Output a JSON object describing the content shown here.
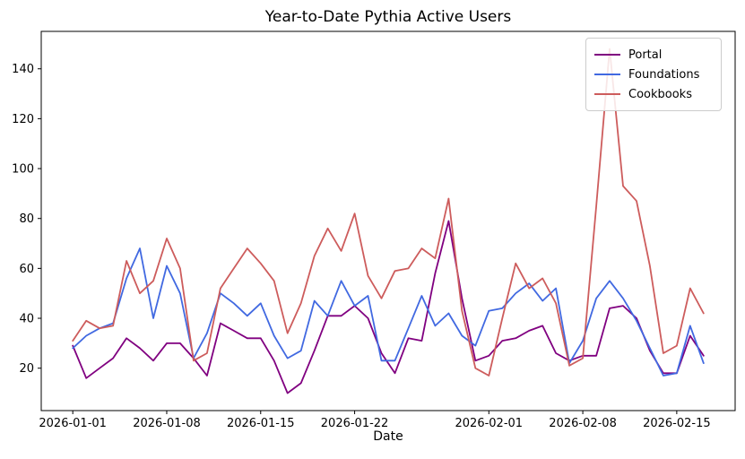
{
  "chart_data": {
    "type": "line",
    "title": "Year-to-Date Pythia Active Users",
    "xlabel": "Date",
    "ylabel": "",
    "grid": false,
    "legend_position": "upper right",
    "ylim": [
      3,
      155
    ],
    "yticks": [
      20,
      40,
      60,
      80,
      100,
      120,
      140
    ],
    "xtick_labels": [
      "2026-01-01",
      "2026-01-08",
      "2026-01-15",
      "2026-01-22",
      "2026-02-01",
      "2026-02-08",
      "2026-02-15"
    ],
    "xtick_indices": [
      0,
      7,
      14,
      21,
      31,
      38,
      45
    ],
    "x": [
      "2026-01-01",
      "2026-01-02",
      "2026-01-03",
      "2026-01-04",
      "2026-01-05",
      "2026-01-06",
      "2026-01-07",
      "2026-01-08",
      "2026-01-09",
      "2026-01-10",
      "2026-01-11",
      "2026-01-12",
      "2026-01-13",
      "2026-01-14",
      "2026-01-15",
      "2026-01-16",
      "2026-01-17",
      "2026-01-18",
      "2026-01-19",
      "2026-01-20",
      "2026-01-21",
      "2026-01-22",
      "2026-01-23",
      "2026-01-24",
      "2026-01-25",
      "2026-01-26",
      "2026-01-27",
      "2026-01-28",
      "2026-01-29",
      "2026-01-30",
      "2026-01-31",
      "2026-02-01",
      "2026-02-02",
      "2026-02-03",
      "2026-02-04",
      "2026-02-05",
      "2026-02-06",
      "2026-02-07",
      "2026-02-08",
      "2026-02-09",
      "2026-02-10",
      "2026-02-11",
      "2026-02-12",
      "2026-02-13",
      "2026-02-14",
      "2026-02-15",
      "2026-02-16",
      "2026-02-17"
    ],
    "series": [
      {
        "name": "Portal",
        "color": "#800080",
        "values": [
          29,
          16,
          20,
          24,
          32,
          28,
          23,
          30,
          30,
          24,
          17,
          38,
          35,
          32,
          32,
          23,
          10,
          14,
          27,
          41,
          41,
          45,
          40,
          26,
          18,
          32,
          31,
          58,
          79,
          48,
          23,
          25,
          31,
          32,
          35,
          37,
          26,
          23,
          25,
          25,
          44,
          45,
          40,
          27,
          18,
          18,
          33,
          25
        ]
      },
      {
        "name": "Foundations",
        "color": "#4169E1",
        "values": [
          28,
          33,
          36,
          38,
          56,
          68,
          40,
          61,
          50,
          24,
          34,
          50,
          46,
          41,
          46,
          33,
          24,
          27,
          47,
          41,
          55,
          45,
          49,
          23,
          23,
          36,
          49,
          37,
          42,
          33,
          29,
          43,
          44,
          50,
          54,
          47,
          52,
          22,
          31,
          48,
          55,
          48,
          39,
          28,
          17,
          18,
          37,
          22
        ]
      },
      {
        "name": "Cookbooks",
        "color": "#CD5C5C",
        "values": [
          31,
          39,
          36,
          37,
          63,
          50,
          55,
          72,
          60,
          23,
          26,
          52,
          60,
          68,
          62,
          55,
          34,
          46,
          65,
          76,
          67,
          82,
          57,
          48,
          59,
          60,
          68,
          64,
          88,
          43,
          20,
          17,
          40,
          62,
          52,
          56,
          46,
          21,
          24,
          85,
          148,
          93,
          87,
          61,
          26,
          29,
          52,
          42
        ]
      }
    ]
  }
}
